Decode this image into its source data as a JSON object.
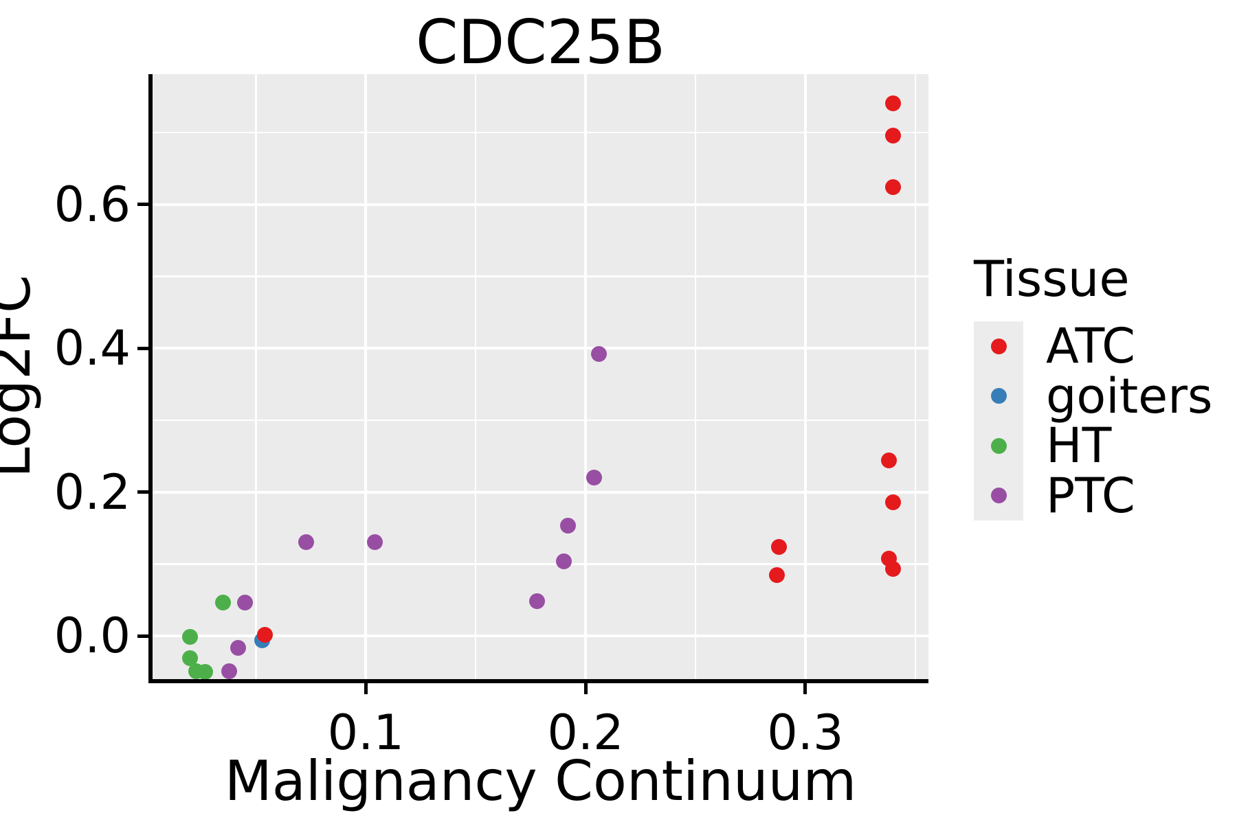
{
  "title": "CDC25B",
  "colors": {
    "panel_bg": "#ebebeb",
    "grid_major": "#ffffff",
    "grid_minor": "#ffffff",
    "axis": "#000000",
    "legend_key_bg": "#ececec",
    "atc_red": "#e41a1c",
    "goiters_blue": "#377eb8",
    "ht_green": "#4daf4a",
    "ptc_purple": "#984ea3"
  },
  "legend": {
    "title": "Tissue",
    "items": [
      {
        "label": "ATC",
        "color": "#e41a1c"
      },
      {
        "label": "goiters",
        "color": "#377eb8"
      },
      {
        "label": "HT",
        "color": "#4daf4a"
      },
      {
        "label": "PTC",
        "color": "#984ea3"
      }
    ]
  },
  "chart_data": {
    "type": "scatter",
    "title": "CDC25B",
    "xlabel": "Malignancy Continuum",
    "ylabel": "Log2FC",
    "xlim": [
      0.003,
      0.356
    ],
    "ylim": [
      -0.06,
      0.781
    ],
    "grid": true,
    "legend_position": "right",
    "legend_title": "Tissue",
    "x_major_ticks": [
      0.1,
      0.2,
      0.3
    ],
    "x_tick_labels": [
      "0.1",
      "0.2",
      "0.3"
    ],
    "x_minor_gridlines": [
      0.05,
      0.15,
      0.25,
      0.35
    ],
    "y_major_ticks": [
      0.0,
      0.2,
      0.4,
      0.6
    ],
    "y_tick_labels": [
      "0.0",
      "0.2",
      "0.4",
      "0.6"
    ],
    "y_minor_gridlines": [
      0.1,
      0.3,
      0.5,
      0.7
    ],
    "series": [
      {
        "name": "HT",
        "color": "#4daf4a",
        "points": [
          [
            0.035,
            0.046
          ],
          [
            0.02,
            -0.001
          ],
          [
            0.02,
            -0.031
          ],
          [
            0.023,
            -0.049
          ],
          [
            0.027,
            -0.05
          ]
        ]
      },
      {
        "name": "PTC",
        "color": "#984ea3",
        "points": [
          [
            0.206,
            0.392
          ],
          [
            0.204,
            0.22
          ],
          [
            0.192,
            0.153
          ],
          [
            0.19,
            0.104
          ],
          [
            0.178,
            0.048
          ],
          [
            0.073,
            0.13
          ],
          [
            0.104,
            0.13
          ],
          [
            0.045,
            0.046
          ],
          [
            0.042,
            -0.017
          ],
          [
            0.038,
            -0.049
          ]
        ]
      },
      {
        "name": "goiters",
        "color": "#377eb8",
        "points": [
          [
            0.053,
            -0.006
          ]
        ]
      },
      {
        "name": "ATC",
        "color": "#e41a1c",
        "points": [
          [
            0.34,
            0.74
          ],
          [
            0.34,
            0.696
          ],
          [
            0.34,
            0.624
          ],
          [
            0.338,
            0.244
          ],
          [
            0.34,
            0.186
          ],
          [
            0.338,
            0.108
          ],
          [
            0.34,
            0.093
          ],
          [
            0.288,
            0.124
          ],
          [
            0.287,
            0.085
          ],
          [
            0.054,
            0.002
          ]
        ]
      }
    ]
  }
}
